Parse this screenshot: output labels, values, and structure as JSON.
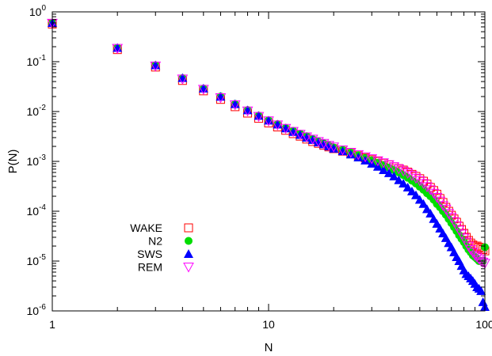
{
  "chart_data": {
    "type": "scatter",
    "xlabel": "N",
    "ylabel": "P(N)",
    "x_scale": "log",
    "y_scale": "log",
    "xlim": [
      1,
      100
    ],
    "ylim": [
      1e-06,
      1
    ],
    "x_ticks": [
      {
        "value": 1,
        "label": "1"
      },
      {
        "value": 10,
        "label": "10"
      },
      {
        "value": 100,
        "label": "100"
      }
    ],
    "y_ticks": [
      {
        "value": 1e-06,
        "base": "10",
        "exp": "-6"
      },
      {
        "value": 1e-05,
        "base": "10",
        "exp": "-5"
      },
      {
        "value": 0.0001,
        "base": "10",
        "exp": "-4"
      },
      {
        "value": 0.001,
        "base": "10",
        "exp": "-3"
      },
      {
        "value": 0.01,
        "base": "10",
        "exp": "-2"
      },
      {
        "value": 0.1,
        "base": "10",
        "exp": "-1"
      },
      {
        "value": 1,
        "base": "10",
        "exp": "0"
      }
    ],
    "grid": false,
    "legend_position": "left-middle",
    "series": [
      {
        "name": "WAKE",
        "marker": "open-square",
        "color": "#ff0000",
        "x": [
          1,
          2,
          3,
          4,
          5,
          6,
          7,
          8,
          9,
          10,
          11,
          12,
          13,
          14,
          15,
          16,
          17,
          18,
          19,
          20,
          22,
          24,
          26,
          28,
          30,
          32,
          34,
          36,
          38,
          40,
          42,
          44,
          46,
          48,
          50,
          52,
          54,
          56,
          58,
          60,
          62,
          64,
          66,
          68,
          70,
          72,
          74,
          76,
          78,
          80,
          82,
          84,
          86,
          88,
          90,
          92,
          94,
          96,
          98,
          100
        ],
        "y": [
          0.57,
          0.175,
          0.078,
          0.042,
          0.026,
          0.0175,
          0.0125,
          0.0093,
          0.0073,
          0.0059,
          0.0049,
          0.0042,
          0.0036,
          0.0032,
          0.0028,
          0.0025,
          0.0023,
          0.0021,
          0.00195,
          0.0018,
          0.0016,
          0.00145,
          0.0013,
          0.00118,
          0.00108,
          0.001,
          0.00092,
          0.00085,
          0.00078,
          0.00072,
          0.00067,
          0.00061,
          0.00055,
          0.0005,
          0.00045,
          0.0004,
          0.00035,
          0.0003,
          0.00026,
          0.00022,
          0.00018,
          0.00015,
          0.00012,
          0.0001,
          8.3e-05,
          7e-05,
          6e-05,
          5e-05,
          4.3e-05,
          3.6e-05,
          3e-05,
          2.6e-05,
          2.3e-05,
          2.1e-05,
          2e-05,
          2e-05,
          1.9e-05,
          1.8e-05,
          1.7e-05,
          1.6e-05
        ]
      },
      {
        "name": "N2",
        "marker": "filled-circle",
        "color": "#00dd00",
        "x": [
          1,
          2,
          3,
          4,
          5,
          6,
          7,
          8,
          9,
          10,
          11,
          12,
          13,
          14,
          15,
          16,
          17,
          18,
          19,
          20,
          22,
          24,
          26,
          28,
          30,
          32,
          34,
          36,
          38,
          40,
          42,
          44,
          46,
          48,
          50,
          52,
          54,
          56,
          58,
          60,
          62,
          64,
          66,
          68,
          70,
          72,
          74,
          76,
          78,
          80,
          82,
          84,
          86,
          88,
          90,
          92,
          94,
          96,
          98,
          100
        ],
        "y": [
          0.6,
          0.19,
          0.085,
          0.047,
          0.029,
          0.02,
          0.0142,
          0.0107,
          0.0083,
          0.0067,
          0.0056,
          0.0047,
          0.0041,
          0.0036,
          0.0032,
          0.0028,
          0.0025,
          0.0023,
          0.0021,
          0.0019,
          0.0017,
          0.0015,
          0.00133,
          0.00118,
          0.00105,
          0.00094,
          0.00084,
          0.00075,
          0.00067,
          0.0006,
          0.00053,
          0.00047,
          0.00041,
          0.00036,
          0.00031,
          0.00027,
          0.00023,
          0.0002,
          0.00017,
          0.00014,
          0.00012,
          0.0001,
          8.5e-05,
          7e-05,
          5.8e-05,
          4.8e-05,
          4e-05,
          3.3e-05,
          2.8e-05,
          2.4e-05,
          2e-05,
          1.7e-05,
          1.5e-05,
          1.3e-05,
          1.2e-05,
          1.1e-05,
          1e-05,
          1e-05,
          1e-05,
          1.9e-05
        ]
      },
      {
        "name": "SWS",
        "marker": "filled-triangle",
        "color": "#0000ff",
        "x": [
          1,
          2,
          3,
          4,
          5,
          6,
          7,
          8,
          9,
          10,
          11,
          12,
          13,
          14,
          15,
          16,
          17,
          18,
          19,
          20,
          22,
          24,
          26,
          28,
          30,
          32,
          34,
          36,
          38,
          40,
          42,
          44,
          46,
          48,
          50,
          52,
          54,
          56,
          58,
          60,
          62,
          64,
          66,
          68,
          70,
          72,
          74,
          76,
          78,
          80,
          82,
          84,
          86,
          88,
          90,
          92,
          94,
          96,
          98,
          100
        ],
        "y": [
          0.6,
          0.19,
          0.085,
          0.047,
          0.029,
          0.0198,
          0.0141,
          0.0106,
          0.0082,
          0.0066,
          0.0055,
          0.0046,
          0.0039,
          0.0034,
          0.003,
          0.0027,
          0.0024,
          0.0022,
          0.002,
          0.0018,
          0.0016,
          0.00138,
          0.0012,
          0.00104,
          0.0009,
          0.00078,
          0.00067,
          0.00058,
          0.0005,
          0.00042,
          0.00036,
          0.0003,
          0.00025,
          0.00021,
          0.00017,
          0.00014,
          0.00011,
          9e-05,
          7e-05,
          5.6e-05,
          4.5e-05,
          3.6e-05,
          2.9e-05,
          2.3e-05,
          1.9e-05,
          1.5e-05,
          1.2e-05,
          1e-05,
          8e-06,
          6.5e-06,
          5.5e-06,
          5e-06,
          4.5e-06,
          4e-06,
          3.5e-06,
          3e-06,
          2.8e-06,
          2.5e-06,
          1.5e-06,
          1.2e-06
        ]
      },
      {
        "name": "REM",
        "marker": "open-inverted-triangle",
        "color": "#ff00ff",
        "x": [
          1,
          2,
          3,
          4,
          5,
          6,
          7,
          8,
          9,
          10,
          11,
          12,
          13,
          14,
          15,
          16,
          17,
          18,
          19,
          20,
          22,
          24,
          26,
          28,
          30,
          32,
          34,
          36,
          38,
          40,
          42,
          44,
          46,
          48,
          50,
          52,
          54,
          56,
          58,
          60,
          62,
          64,
          66,
          68,
          70,
          72,
          74,
          76,
          78,
          80,
          82,
          84,
          86,
          88,
          90,
          92,
          94,
          96,
          98,
          100
        ],
        "y": [
          0.59,
          0.185,
          0.082,
          0.045,
          0.028,
          0.019,
          0.0137,
          0.0103,
          0.008,
          0.0065,
          0.0054,
          0.0046,
          0.004,
          0.0035,
          0.0031,
          0.0028,
          0.0025,
          0.0023,
          0.0021,
          0.00195,
          0.0017,
          0.00152,
          0.00137,
          0.00124,
          0.00113,
          0.00103,
          0.00094,
          0.00086,
          0.00078,
          0.00071,
          0.00064,
          0.00058,
          0.00052,
          0.00046,
          0.00041,
          0.00036,
          0.00031,
          0.00027,
          0.00023,
          0.00019,
          0.00016,
          0.00013,
          0.00011,
          9e-05,
          7.5e-05,
          6.2e-05,
          5.1e-05,
          4.2e-05,
          3.5e-05,
          2.9e-05,
          2.4e-05,
          2e-05,
          1.7e-05,
          1.5e-05,
          1.3e-05,
          1.2e-05,
          1.1e-05,
          1e-05,
          9.5e-06,
          9e-06
        ]
      }
    ]
  }
}
